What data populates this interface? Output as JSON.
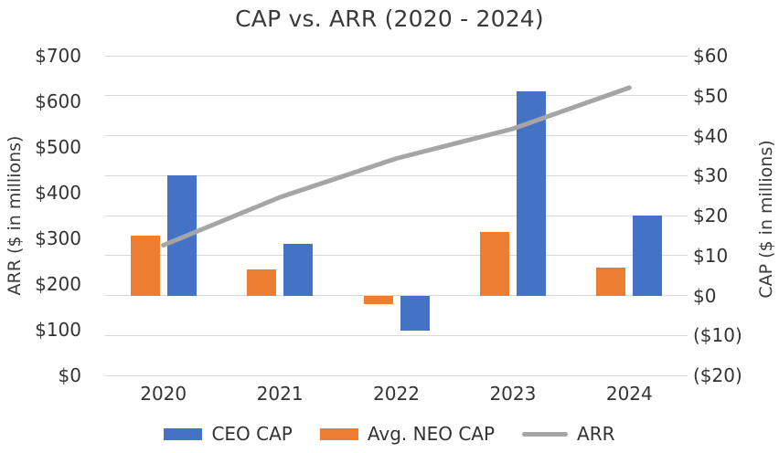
{
  "chart_data": {
    "type": "combo-bar-line",
    "title": "CAP vs. ARR (2020 - 2024)",
    "categories": [
      "2020",
      "2021",
      "2022",
      "2023",
      "2024"
    ],
    "series": [
      {
        "name": "CEO CAP",
        "render": "bar",
        "axis": "right",
        "bar_slot": 1,
        "color": "#4472C4",
        "values": [
          30,
          13,
          -8.7,
          51,
          20
        ]
      },
      {
        "name": "Avg. NEO CAP",
        "render": "bar",
        "axis": "right",
        "bar_slot": 0,
        "color": "#ED7D31",
        "values": [
          15,
          6.5,
          -2.2,
          16,
          7
        ]
      },
      {
        "name": "ARR",
        "render": "line",
        "axis": "left",
        "color": "#A5A5A5",
        "values": [
          285,
          390,
          475,
          540,
          630
        ]
      }
    ],
    "left_axis": {
      "label": "ARR ($ in millions)",
      "min": 0,
      "max": 700,
      "step": 100,
      "ticks_top_to_bottom": [
        "$700",
        "$600",
        "$500",
        "$400",
        "$300",
        "$200",
        "$100",
        "$0"
      ]
    },
    "right_axis": {
      "label": "CAP ($ in millions)",
      "min": -20,
      "max": 60,
      "step": 10,
      "ticks_top_to_bottom": [
        "$60",
        "$50",
        "$40",
        "$30",
        "$20",
        "$10",
        "$0",
        "($10)",
        "($20)"
      ]
    },
    "grid": true,
    "gridline_color": "#D9D9D9",
    "legend_position": "bottom",
    "legend_order": [
      "CEO CAP",
      "Avg. NEO CAP",
      "ARR"
    ]
  }
}
